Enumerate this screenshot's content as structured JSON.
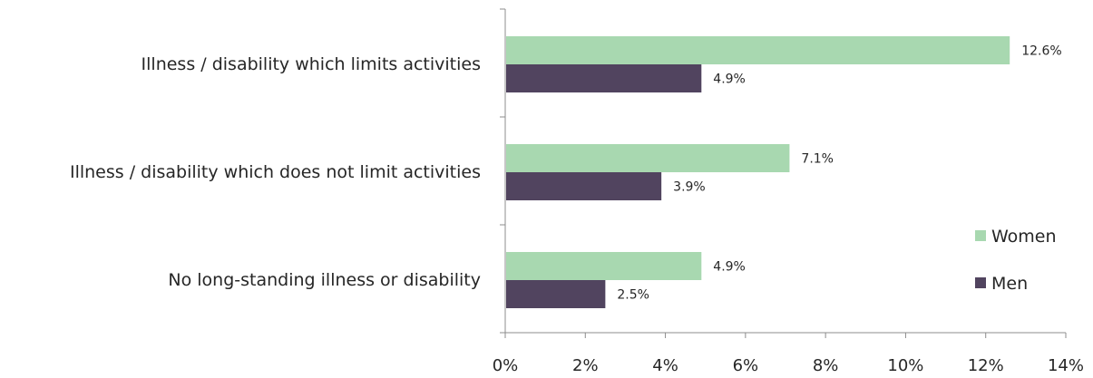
{
  "chart_data": {
    "type": "bar",
    "orientation": "horizontal",
    "title": "",
    "xlabel": "",
    "ylabel": "",
    "categories": [
      "Illness / disability which limits activities",
      "Illness / disability which does not limit activities",
      "No long-standing illness or disability"
    ],
    "series": [
      {
        "name": "Women",
        "values": [
          12.6,
          7.1,
          4.9
        ],
        "color": "#a8d8b0"
      },
      {
        "name": "Men",
        "values": [
          4.9,
          3.9,
          2.5
        ],
        "color": "#51445f"
      }
    ],
    "xlim": [
      0,
      14
    ],
    "x_ticks": [
      0,
      2,
      4,
      6,
      8,
      10,
      12,
      14
    ],
    "tick_suffix": "%",
    "value_format": "one_decimal_percent",
    "legend_position": "right",
    "grid": false
  }
}
